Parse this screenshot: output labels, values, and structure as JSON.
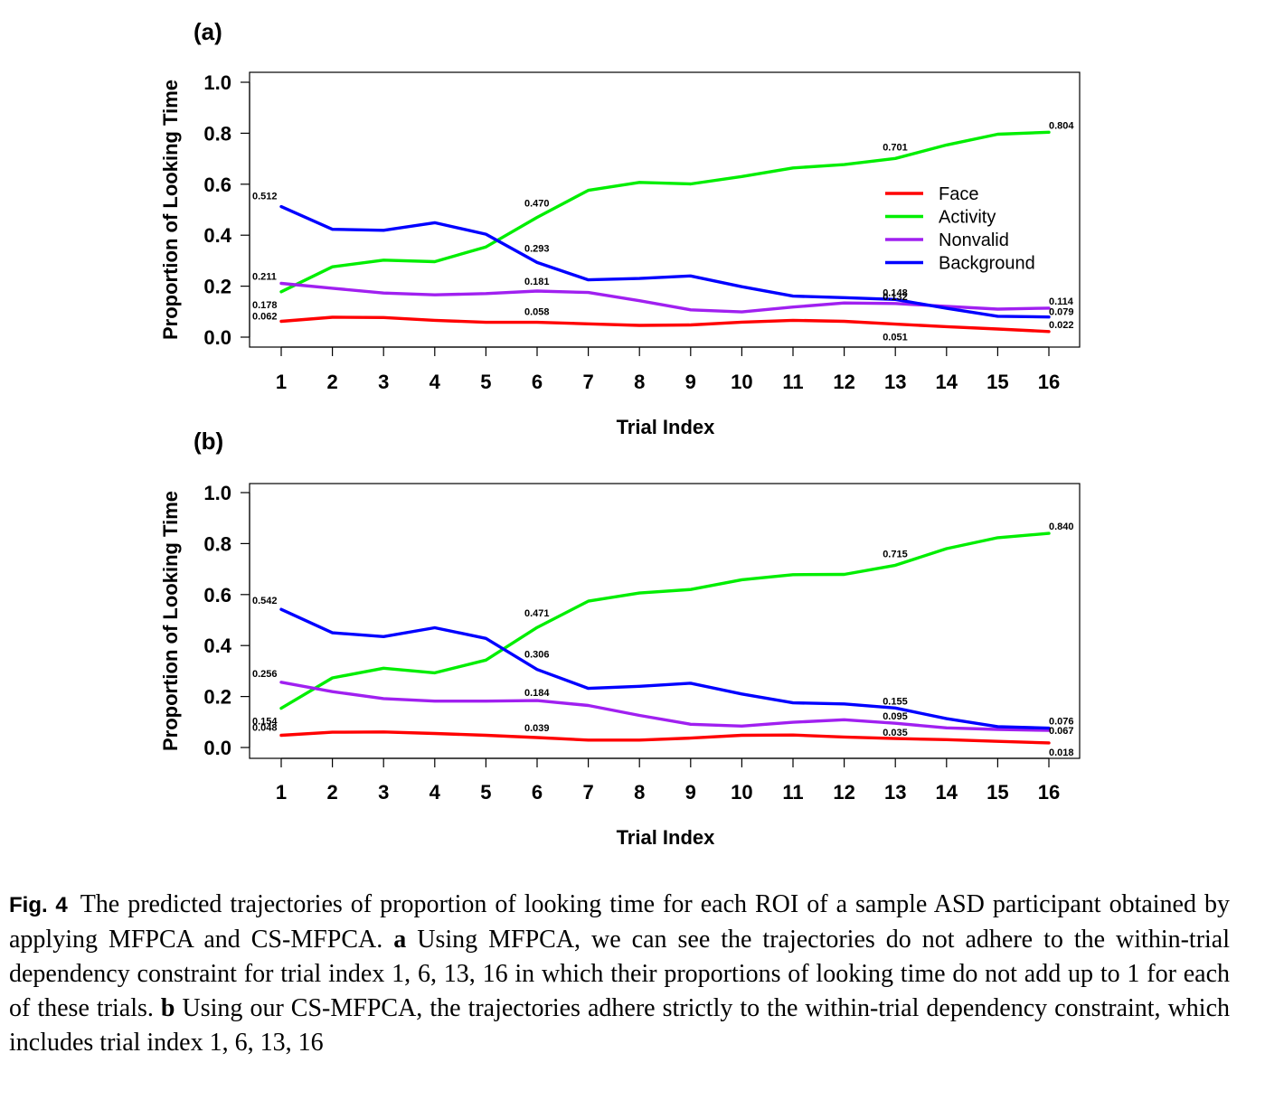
{
  "caption": {
    "label": "Fig. 4",
    "text1": "The predicted trajectories of proportion of looking time for each ROI of a sample ASD participant obtained by applying MFPCA and CS-MFPCA.",
    "a_marker": "a",
    "text2": "Using MFPCA, we can see the trajectories do not adhere to the within-trial dependency constraint for trial index 1, 6, 13, 16 in which their proportions of looking time do not add up to 1 for each of these trials.",
    "b_marker": "b",
    "text3": "Using our CS-MFPCA, the trajectories adhere strictly to the within-trial dependency constraint, which includes trial index 1, 6, 13, 16"
  },
  "colors": {
    "Face": "#ff0000",
    "Activity": "#00ee00",
    "Nonvalid": "#a020f0",
    "Background": "#0000ff"
  },
  "chart_data": [
    {
      "type": "line",
      "panel_label": "(a)",
      "xlabel": "Trial Index",
      "ylabel": "Proportion of Looking Time",
      "x": [
        1,
        2,
        3,
        4,
        5,
        6,
        7,
        8,
        9,
        10,
        11,
        12,
        13,
        14,
        15,
        16
      ],
      "ylim": [
        0.0,
        1.0
      ],
      "yticks": [
        "0.0",
        "0.2",
        "0.4",
        "0.6",
        "0.8",
        "1.0"
      ],
      "legend": [
        "Face",
        "Activity",
        "Nonvalid",
        "Background"
      ],
      "legend_position": "right",
      "series": [
        {
          "name": "Face",
          "values": [
            0.062,
            0.078,
            0.077,
            0.066,
            0.058,
            0.058,
            0.052,
            0.046,
            0.048,
            0.059,
            0.066,
            0.062,
            0.051,
            0.041,
            0.032,
            0.022
          ]
        },
        {
          "name": "Activity",
          "values": [
            0.178,
            0.276,
            0.302,
            0.296,
            0.354,
            0.47,
            0.576,
            0.607,
            0.601,
            0.63,
            0.664,
            0.677,
            0.701,
            0.754,
            0.796,
            0.804
          ]
        },
        {
          "name": "Nonvalid",
          "values": [
            0.211,
            0.192,
            0.173,
            0.166,
            0.171,
            0.181,
            0.175,
            0.143,
            0.107,
            0.099,
            0.118,
            0.134,
            0.132,
            0.121,
            0.11,
            0.114
          ]
        },
        {
          "name": "Background",
          "values": [
            0.512,
            0.423,
            0.419,
            0.449,
            0.404,
            0.293,
            0.225,
            0.23,
            0.24,
            0.198,
            0.161,
            0.155,
            0.148,
            0.113,
            0.082,
            0.079
          ]
        }
      ],
      "annotations": [
        {
          "x": 1,
          "y": 0.512,
          "text": "0.512"
        },
        {
          "x": 1,
          "y": 0.211,
          "text": "0.211"
        },
        {
          "x": 1,
          "y": 0.178,
          "text": "0.178"
        },
        {
          "x": 1,
          "y": 0.062,
          "text": "0.062"
        },
        {
          "x": 6,
          "y": 0.47,
          "text": "0.470"
        },
        {
          "x": 6,
          "y": 0.293,
          "text": "0.293"
        },
        {
          "x": 6,
          "y": 0.181,
          "text": "0.181"
        },
        {
          "x": 6,
          "y": 0.058,
          "text": "0.058"
        },
        {
          "x": 13,
          "y": 0.701,
          "text": "0.701"
        },
        {
          "x": 13,
          "y": 0.148,
          "text": "0.148"
        },
        {
          "x": 13,
          "y": 0.132,
          "text": "0.132"
        },
        {
          "x": 13,
          "y": 0.051,
          "text": "0.051"
        },
        {
          "x": 16,
          "y": 0.804,
          "text": "0.804"
        },
        {
          "x": 16,
          "y": 0.114,
          "text": "0.114"
        },
        {
          "x": 16,
          "y": 0.079,
          "text": "0.079"
        },
        {
          "x": 16,
          "y": 0.022,
          "text": "0.022"
        }
      ]
    },
    {
      "type": "line",
      "panel_label": "(b)",
      "xlabel": "Trial Index",
      "ylabel": "Proportion of Looking Time",
      "x": [
        1,
        2,
        3,
        4,
        5,
        6,
        7,
        8,
        9,
        10,
        11,
        12,
        13,
        14,
        15,
        16
      ],
      "ylim": [
        0.0,
        1.0
      ],
      "yticks": [
        "0.0",
        "0.2",
        "0.4",
        "0.6",
        "0.8",
        "1.0"
      ],
      "series": [
        {
          "name": "Face",
          "values": [
            0.048,
            0.06,
            0.061,
            0.055,
            0.048,
            0.039,
            0.029,
            0.029,
            0.037,
            0.048,
            0.049,
            0.041,
            0.035,
            0.031,
            0.024,
            0.018
          ]
        },
        {
          "name": "Activity",
          "values": [
            0.154,
            0.273,
            0.311,
            0.293,
            0.343,
            0.471,
            0.574,
            0.606,
            0.62,
            0.658,
            0.678,
            0.679,
            0.715,
            0.78,
            0.823,
            0.84
          ]
        },
        {
          "name": "Nonvalid",
          "values": [
            0.256,
            0.219,
            0.192,
            0.182,
            0.182,
            0.184,
            0.165,
            0.126,
            0.091,
            0.084,
            0.099,
            0.109,
            0.095,
            0.077,
            0.071,
            0.067
          ]
        },
        {
          "name": "Background",
          "values": [
            0.542,
            0.45,
            0.435,
            0.47,
            0.428,
            0.306,
            0.232,
            0.24,
            0.252,
            0.21,
            0.175,
            0.171,
            0.155,
            0.113,
            0.082,
            0.076
          ]
        }
      ],
      "annotations": [
        {
          "x": 1,
          "y": 0.542,
          "text": "0.542"
        },
        {
          "x": 1,
          "y": 0.256,
          "text": "0.256"
        },
        {
          "x": 1,
          "y": 0.154,
          "text": "0.154"
        },
        {
          "x": 1,
          "y": 0.048,
          "text": "0.048"
        },
        {
          "x": 6,
          "y": 0.471,
          "text": "0.471"
        },
        {
          "x": 6,
          "y": 0.306,
          "text": "0.306"
        },
        {
          "x": 6,
          "y": 0.184,
          "text": "0.184"
        },
        {
          "x": 6,
          "y": 0.039,
          "text": "0.039"
        },
        {
          "x": 13,
          "y": 0.715,
          "text": "0.715"
        },
        {
          "x": 13,
          "y": 0.155,
          "text": "0.155"
        },
        {
          "x": 13,
          "y": 0.095,
          "text": "0.095"
        },
        {
          "x": 13,
          "y": 0.035,
          "text": "0.035"
        },
        {
          "x": 16,
          "y": 0.84,
          "text": "0.840"
        },
        {
          "x": 16,
          "y": 0.076,
          "text": "0.076"
        },
        {
          "x": 16,
          "y": 0.067,
          "text": "0.067"
        },
        {
          "x": 16,
          "y": 0.018,
          "text": "0.018"
        }
      ]
    }
  ]
}
